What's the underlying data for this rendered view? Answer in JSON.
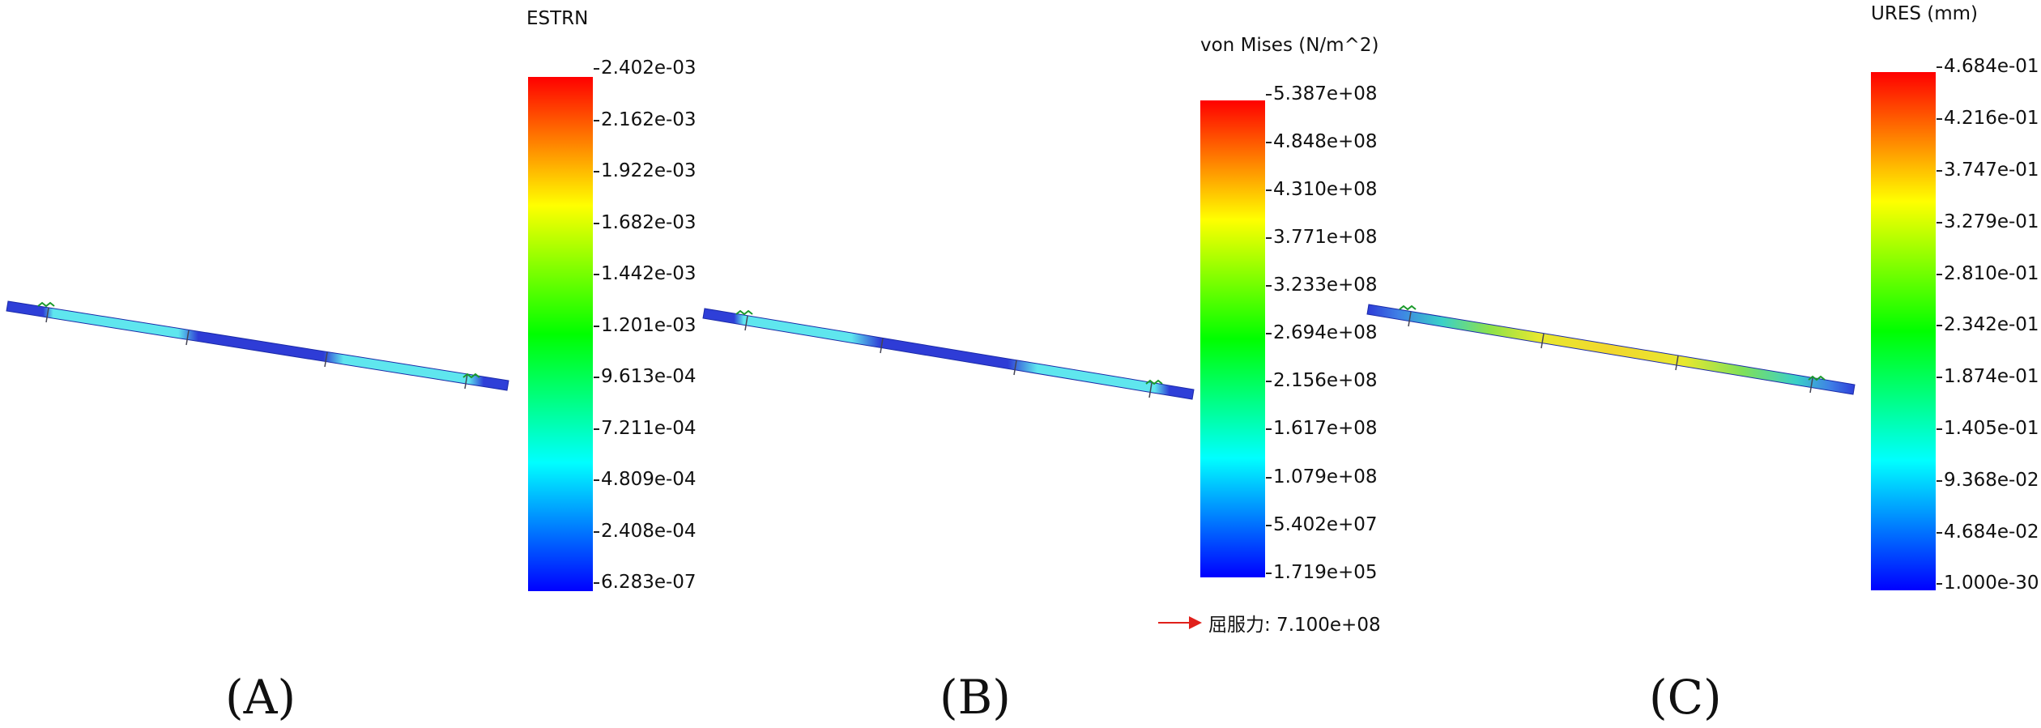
{
  "panels": [
    {
      "caption": "(A)",
      "legend": {
        "title": "ESTRN",
        "ticks": [
          "2.402e-03",
          "2.162e-03",
          "1.922e-03",
          "1.682e-03",
          "1.442e-03",
          "1.201e-03",
          "9.613e-04",
          "7.211e-04",
          "4.809e-04",
          "2.408e-04",
          "6.283e-07"
        ]
      }
    },
    {
      "caption": "(B)",
      "legend": {
        "title": "von Mises (N/m^2)",
        "ticks": [
          "5.387e+08",
          "4.848e+08",
          "4.310e+08",
          "3.771e+08",
          "3.233e+08",
          "2.694e+08",
          "2.156e+08",
          "1.617e+08",
          "1.079e+08",
          "5.402e+07",
          "1.719e+05"
        ]
      },
      "yield_label": "屈服力: 7.100e+08"
    },
    {
      "caption": "(C)",
      "legend": {
        "title": "URES (mm)",
        "ticks": [
          "4.684e-01",
          "4.216e-01",
          "3.747e-01",
          "3.279e-01",
          "2.810e-01",
          "2.342e-01",
          "1.874e-01",
          "1.405e-01",
          "9.368e-02",
          "4.684e-02",
          "1.000e-30"
        ]
      }
    }
  ],
  "colors": {
    "legend_top": "#ff0000",
    "legend_bottom": "#0000ff",
    "yield_arrow": "#e0201b"
  }
}
